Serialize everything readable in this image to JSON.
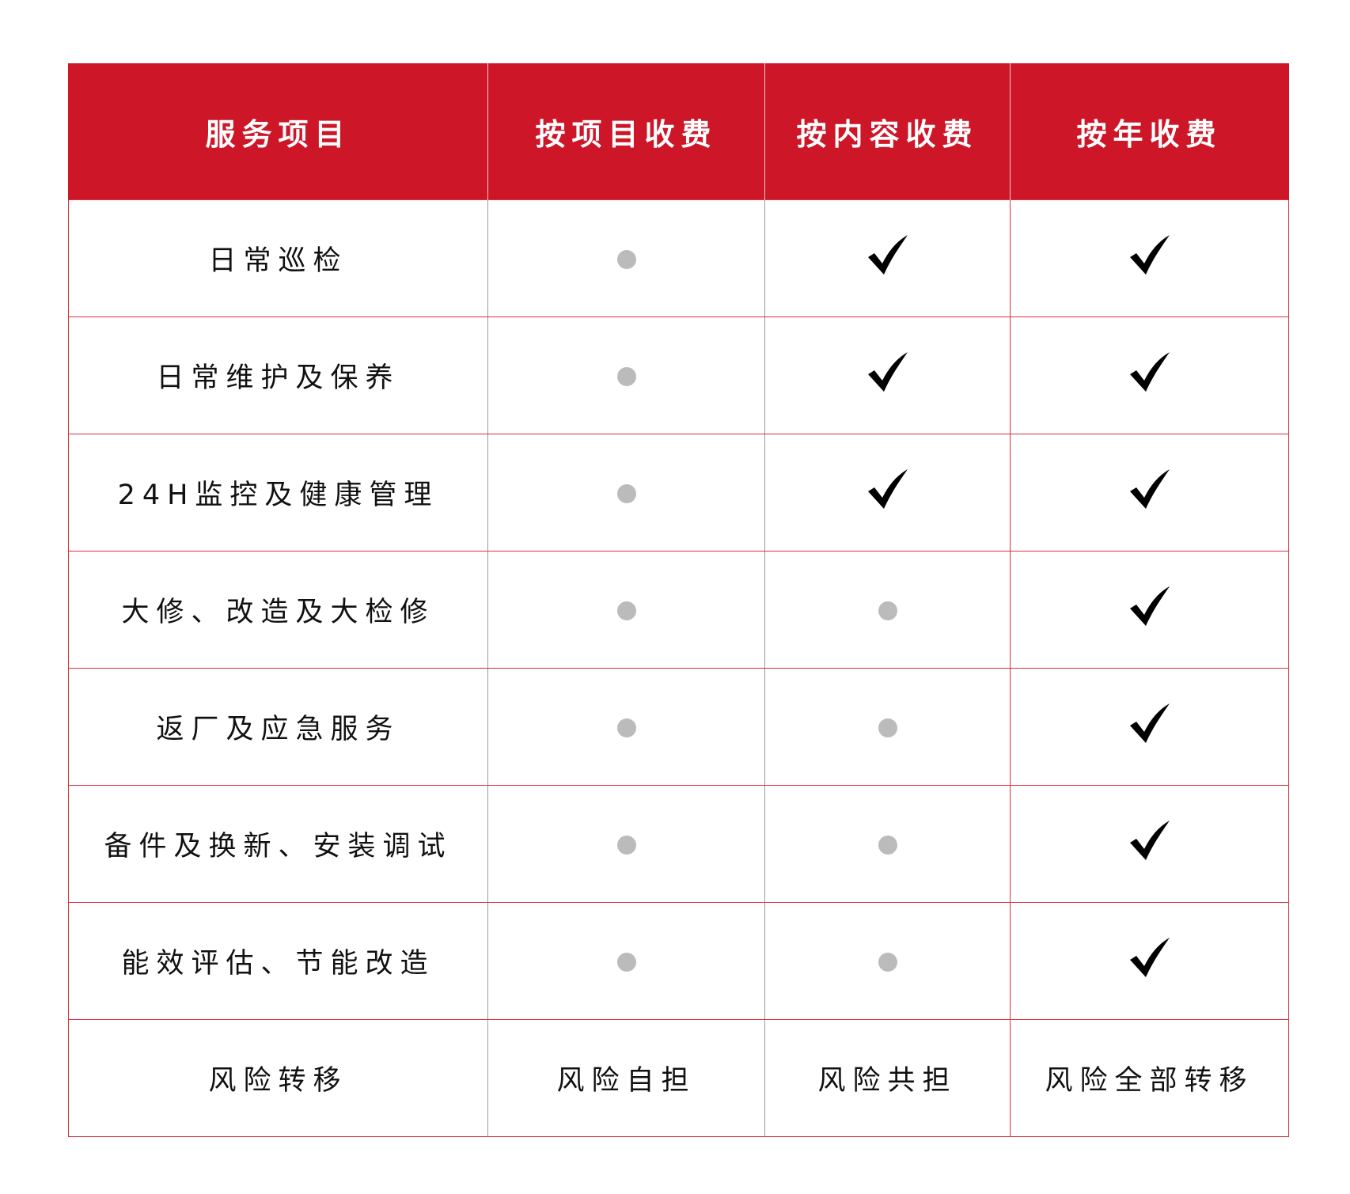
{
  "colors": {
    "header_bg": "#cd1628",
    "border": "#d9303c",
    "dot": "#bbbbbb",
    "check": "#000000"
  },
  "headers": [
    "服务项目",
    "按项目收费",
    "按内容收费",
    "按年收费"
  ],
  "rows": [
    {
      "label": "日常巡检",
      "cells": [
        "dot",
        "check",
        "check"
      ]
    },
    {
      "label": "日常维护及保养",
      "cells": [
        "dot",
        "check",
        "check"
      ]
    },
    {
      "label": "24H监控及健康管理",
      "cells": [
        "dot",
        "check",
        "check"
      ]
    },
    {
      "label": "大修、改造及大检修",
      "cells": [
        "dot",
        "dot",
        "check"
      ]
    },
    {
      "label": "返厂及应急服务",
      "cells": [
        "dot",
        "dot",
        "check"
      ]
    },
    {
      "label": "备件及换新、安装调试",
      "cells": [
        "dot",
        "dot",
        "check"
      ]
    },
    {
      "label": "能效评估、节能改造",
      "cells": [
        "dot",
        "dot",
        "check"
      ]
    }
  ],
  "risk_row": {
    "label": "风险转移",
    "cells": [
      "风险自担",
      "风险共担",
      "风险全部转移"
    ]
  }
}
